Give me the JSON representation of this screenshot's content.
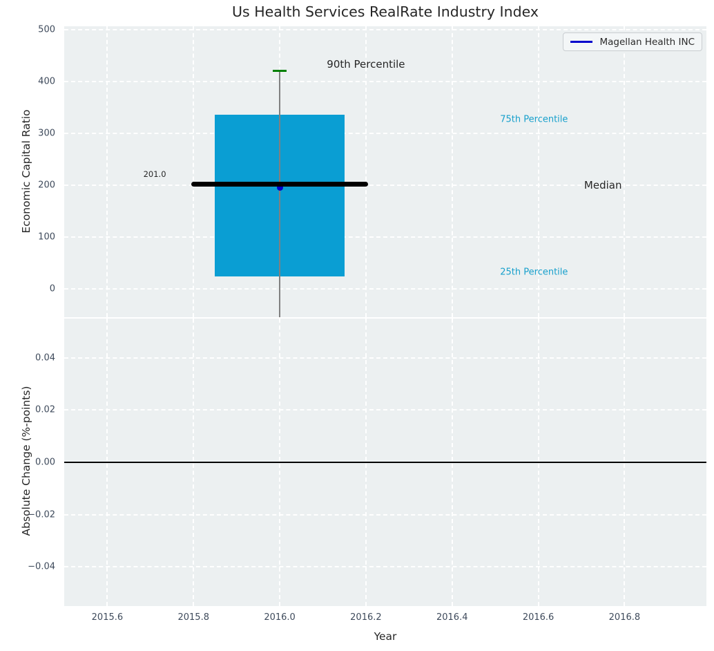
{
  "title": "Us Health Services RealRate Industry Index",
  "legend": {
    "label": "Magellan Health INC",
    "line_color": "#0000cc"
  },
  "colors": {
    "plot_bg": "#ecf0f1",
    "grid": "#ffffff",
    "box_fill": "#0a9ed3",
    "whisker_gray": "#808080",
    "cap_green": "#008002",
    "median_black": "#000000",
    "marker_blue": "#0000cc",
    "tick_text": "#3e4a5b",
    "cyan_text": "#18a0cc",
    "dark_text": "#262626"
  },
  "chart_data": [
    {
      "type": "box",
      "title": "Us Health Services RealRate Industry Index",
      "ylabel": "Economic Capital Ratio",
      "ylim": [
        -55,
        506
      ],
      "xlim": [
        2015.5,
        2016.99
      ],
      "yticks": [
        0,
        100,
        200,
        300,
        400,
        500
      ],
      "ytick_labels": [
        "0",
        "100",
        "200",
        "300",
        "400",
        "500"
      ],
      "xticks": [
        2015.6,
        2015.8,
        2016.0,
        2016.2,
        2016.4,
        2016.6,
        2016.8
      ],
      "xtick_labels_visible": false,
      "grid": "white-dashed",
      "legend_position": "upper right",
      "box": {
        "x_center": 2016.0,
        "x_left": 2015.85,
        "x_right": 2016.15,
        "q25": 23,
        "median": 201,
        "q75": 335,
        "p90": 420,
        "whisker_extends_below_axis": true,
        "median_line_x_left": 2015.8,
        "median_line_x_right": 2016.2
      },
      "series": [
        {
          "name": "Magellan Health INC",
          "x": 2016.0,
          "y": 195,
          "marker": "circle",
          "color": "#0000cc"
        }
      ],
      "annotations": [
        {
          "text": "90th Percentile",
          "x": 2016.2,
          "y": 433,
          "color": "#262626",
          "size": 15
        },
        {
          "text": "75th Percentile",
          "x": 2016.59,
          "y": 326,
          "color": "#18a0cc",
          "size": 13
        },
        {
          "text": "Median",
          "x": 2016.75,
          "y": 200,
          "color": "#262626",
          "size": 15
        },
        {
          "text": "25th Percentile",
          "x": 2016.59,
          "y": 32,
          "color": "#18a0cc",
          "size": 13
        },
        {
          "text": "201.0",
          "x": 2015.71,
          "y": 221,
          "color": "#262626",
          "size": 11.5
        }
      ]
    },
    {
      "type": "line",
      "ylabel": "Absolute Change (%-points)",
      "xlabel": "Year",
      "ylim": [
        -0.055,
        0.055
      ],
      "xlim": [
        2015.5,
        2016.99
      ],
      "yticks": [
        -0.04,
        -0.02,
        0.0,
        0.02,
        0.04
      ],
      "ytick_labels": [
        "−0.04",
        "−0.02",
        "0.00",
        "0.02",
        "0.04"
      ],
      "xticks": [
        2015.6,
        2015.8,
        2016.0,
        2016.2,
        2016.4,
        2016.6,
        2016.8
      ],
      "xtick_labels": [
        "2015.6",
        "2015.8",
        "2016.0",
        "2016.2",
        "2016.4",
        "2016.6",
        "2016.8"
      ],
      "grid": "white-dashed",
      "zero_line": {
        "y": 0.0,
        "color": "#000000"
      }
    }
  ]
}
